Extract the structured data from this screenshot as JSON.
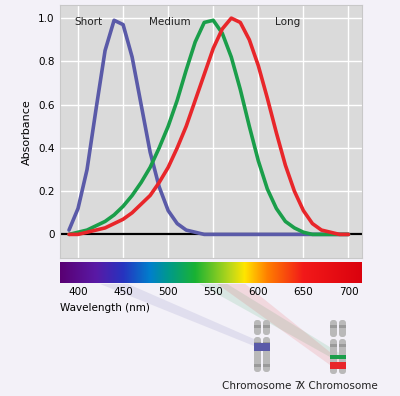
{
  "chart_data": {
    "type": "line",
    "xlabel": "Wavelength (nm)",
    "ylabel": "Absorbance",
    "x": [
      390,
      400,
      410,
      420,
      430,
      440,
      450,
      460,
      470,
      480,
      490,
      500,
      510,
      520,
      530,
      540,
      550,
      560,
      570,
      580,
      590,
      600,
      610,
      620,
      630,
      640,
      650,
      660,
      670,
      680,
      690,
      700
    ],
    "series": [
      {
        "name": "Short",
        "color": "#5a5aa8",
        "values": [
          0.02,
          0.12,
          0.3,
          0.58,
          0.85,
          0.99,
          0.97,
          0.82,
          0.6,
          0.38,
          0.22,
          0.11,
          0.05,
          0.02,
          0.01,
          0,
          0,
          0,
          0,
          0,
          0,
          0,
          0,
          0,
          0,
          0,
          0,
          0,
          0,
          0,
          0,
          0
        ]
      },
      {
        "name": "Medium",
        "color": "#1a9e4a",
        "values": [
          0,
          0.01,
          0.02,
          0.04,
          0.06,
          0.09,
          0.13,
          0.18,
          0.24,
          0.31,
          0.4,
          0.5,
          0.62,
          0.76,
          0.89,
          0.98,
          0.99,
          0.93,
          0.82,
          0.67,
          0.5,
          0.34,
          0.21,
          0.12,
          0.06,
          0.03,
          0.01,
          0,
          0,
          0,
          0,
          0
        ]
      },
      {
        "name": "Long",
        "color": "#e8262a",
        "values": [
          0,
          0,
          0.01,
          0.02,
          0.03,
          0.05,
          0.07,
          0.1,
          0.14,
          0.18,
          0.24,
          0.31,
          0.4,
          0.5,
          0.62,
          0.74,
          0.86,
          0.95,
          1.0,
          0.98,
          0.9,
          0.78,
          0.63,
          0.47,
          0.32,
          0.2,
          0.11,
          0.05,
          0.02,
          0.01,
          0,
          0
        ]
      }
    ],
    "xlim": [
      380,
      715
    ],
    "ylim": [
      -0.11,
      1.06
    ],
    "xticks": [
      400,
      450,
      500,
      550,
      600,
      650,
      700
    ],
    "yticks": [
      0,
      0.2,
      0.4,
      0.6,
      0.8,
      1.0
    ],
    "grid": true,
    "annotations": [
      "Chromosome 7",
      "X Chromosome"
    ]
  }
}
